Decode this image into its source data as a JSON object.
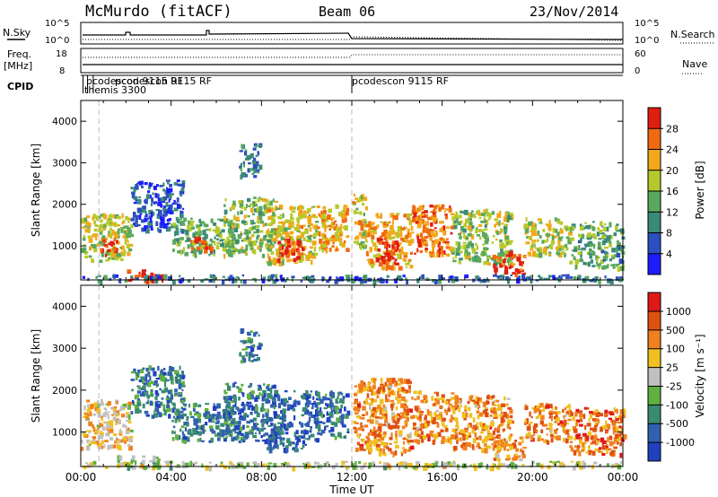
{
  "header": {
    "station": "McMurdo (fitACF)",
    "beam": "Beam 06",
    "date": "23/Nov/2014"
  },
  "top_panels": {
    "nsky_label": "N.Sky",
    "nsearch_label": "N.Search",
    "noise_ticks_left": [
      "10^5",
      "10^0"
    ],
    "noise_ticks_right": [
      "10^5",
      "10^0"
    ],
    "freq_label_1": "Freq.",
    "freq_label_2": "[MHz]",
    "freq_ticks": [
      "18",
      "8"
    ],
    "nave_label": "Nave",
    "nave_ticks": [
      "60",
      "0"
    ],
    "cpid_label": "CPID",
    "cpid_entries": [
      {
        "text": "pcodescon 9115 RF",
        "time": 0.3
      },
      {
        "text": "themis 3300",
        "time": 0.1
      },
      {
        "text": "pcodescon 9115 RF",
        "time": 0.55
      },
      {
        "text": "pcodescon 9115 RF",
        "time": 12.0
      }
    ]
  },
  "colors": {
    "power_scale": [
      "#1c1cff",
      "#2c4fbf",
      "#3a8a78",
      "#5aa85c",
      "#b6c92a",
      "#f2a81a",
      "#f06a10",
      "#e01e10"
    ],
    "velocity_scale": [
      "#2040c0",
      "#3060b0",
      "#3a8a70",
      "#60b040",
      "#c0c0c0",
      "#f0c020",
      "#f08020",
      "#e05010",
      "#e01818"
    ]
  },
  "chart_data": [
    {
      "type": "heatmap",
      "title": "",
      "xlabel": "Time UT",
      "ylabel": "Slant Range [km]",
      "xlim": [
        "00:00",
        "24:00"
      ],
      "ylim": [
        180,
        4500
      ],
      "x_ticks": [
        "00:00",
        "04:00",
        "08:00",
        "12:00",
        "16:00",
        "20:00",
        "00:00"
      ],
      "y_ticks": [
        "1000",
        "2000",
        "3000",
        "4000"
      ],
      "colorbar_label": "Power [dB]",
      "colorbar_ticks": [
        "4",
        "8",
        "12",
        "16",
        "20",
        "24",
        "28"
      ],
      "cmap": "power",
      "regions": [
        {
          "t": [
            0.0,
            2.2
          ],
          "r": [
            650,
            1800
          ],
          "level": 0.55
        },
        {
          "t": [
            0.8,
            1.6
          ],
          "r": [
            800,
            1200
          ],
          "level": 0.95
        },
        {
          "t": [
            1.6,
            3.6
          ],
          "r": [
            180,
            450
          ],
          "level": 0.9
        },
        {
          "t": [
            2.2,
            4.5
          ],
          "r": [
            1400,
            2600
          ],
          "level": 0.2
        },
        {
          "t": [
            4.0,
            6.8
          ],
          "r": [
            800,
            1700
          ],
          "level": 0.45
        },
        {
          "t": [
            4.8,
            5.8
          ],
          "r": [
            900,
            1250
          ],
          "level": 0.9
        },
        {
          "t": [
            6.3,
            8.6
          ],
          "r": [
            800,
            2200
          ],
          "level": 0.5
        },
        {
          "t": [
            7.0,
            7.9
          ],
          "r": [
            2700,
            3500
          ],
          "level": 0.3
        },
        {
          "t": [
            8.2,
            10.4
          ],
          "r": [
            600,
            2000
          ],
          "level": 0.6
        },
        {
          "t": [
            8.7,
            9.8
          ],
          "r": [
            700,
            1200
          ],
          "level": 0.95
        },
        {
          "t": [
            10.4,
            11.8
          ],
          "r": [
            900,
            2000
          ],
          "level": 0.7
        },
        {
          "t": [
            12.0,
            12.6
          ],
          "r": [
            1000,
            2300
          ],
          "level": 0.6
        },
        {
          "t": [
            12.6,
            14.6
          ],
          "r": [
            500,
            1800
          ],
          "level": 0.7
        },
        {
          "t": [
            13.0,
            14.0
          ],
          "r": [
            600,
            1200
          ],
          "level": 1.0
        },
        {
          "t": [
            14.6,
            16.4
          ],
          "r": [
            800,
            2000
          ],
          "level": 0.8
        },
        {
          "t": [
            16.4,
            19.0
          ],
          "r": [
            600,
            1900
          ],
          "level": 0.5
        },
        {
          "t": [
            18.2,
            19.6
          ],
          "r": [
            350,
            900
          ],
          "level": 0.85
        },
        {
          "t": [
            19.6,
            21.6
          ],
          "r": [
            800,
            1700
          ],
          "level": 0.55
        },
        {
          "t": [
            21.6,
            24.0
          ],
          "r": [
            500,
            1600
          ],
          "level": 0.4
        },
        {
          "t": [
            0.0,
            24.0
          ],
          "r": [
            180,
            320
          ],
          "level": 0.25
        }
      ]
    },
    {
      "type": "heatmap",
      "title": "",
      "xlabel": "Time UT",
      "ylabel": "Slant Range [km]",
      "xlim": [
        "00:00",
        "24:00"
      ],
      "ylim": [
        180,
        4500
      ],
      "x_ticks": [
        "00:00",
        "04:00",
        "08:00",
        "12:00",
        "16:00",
        "20:00",
        "00:00"
      ],
      "y_ticks": [
        "1000",
        "2000",
        "3000",
        "4000"
      ],
      "colorbar_label": "Velocity [m s⁻¹]",
      "colorbar_ticks": [
        "1000",
        "500",
        "100",
        "25",
        "-25",
        "-100",
        "-500",
        "-1000"
      ],
      "cmap": "velocity",
      "regions": [
        {
          "t": [
            0.0,
            2.2
          ],
          "r": [
            650,
            1800
          ],
          "level": 0.6
        },
        {
          "t": [
            1.6,
            3.6
          ],
          "r": [
            180,
            450
          ],
          "level": 0.45
        },
        {
          "t": [
            2.2,
            4.5
          ],
          "r": [
            1400,
            2600
          ],
          "level": 0.25
        },
        {
          "t": [
            4.0,
            6.8
          ],
          "r": [
            800,
            1700
          ],
          "level": 0.25
        },
        {
          "t": [
            6.3,
            8.6
          ],
          "r": [
            800,
            2200
          ],
          "level": 0.2
        },
        {
          "t": [
            7.0,
            7.9
          ],
          "r": [
            2700,
            3500
          ],
          "level": 0.25
        },
        {
          "t": [
            8.2,
            10.4
          ],
          "r": [
            600,
            2000
          ],
          "level": 0.15
        },
        {
          "t": [
            10.4,
            11.8
          ],
          "r": [
            900,
            2000
          ],
          "level": 0.2
        },
        {
          "t": [
            12.0,
            14.6
          ],
          "r": [
            500,
            2300
          ],
          "level": 0.72
        },
        {
          "t": [
            14.6,
            16.4
          ],
          "r": [
            800,
            2000
          ],
          "level": 0.72
        },
        {
          "t": [
            16.4,
            19.0
          ],
          "r": [
            600,
            1900
          ],
          "level": 0.72
        },
        {
          "t": [
            18.2,
            19.6
          ],
          "r": [
            350,
            900
          ],
          "level": 0.7
        },
        {
          "t": [
            19.6,
            21.6
          ],
          "r": [
            800,
            1700
          ],
          "level": 0.72
        },
        {
          "t": [
            21.6,
            24.0
          ],
          "r": [
            500,
            1600
          ],
          "level": 0.75
        },
        {
          "t": [
            0.0,
            24.0
          ],
          "r": [
            180,
            320
          ],
          "level": 0.5
        }
      ]
    }
  ]
}
